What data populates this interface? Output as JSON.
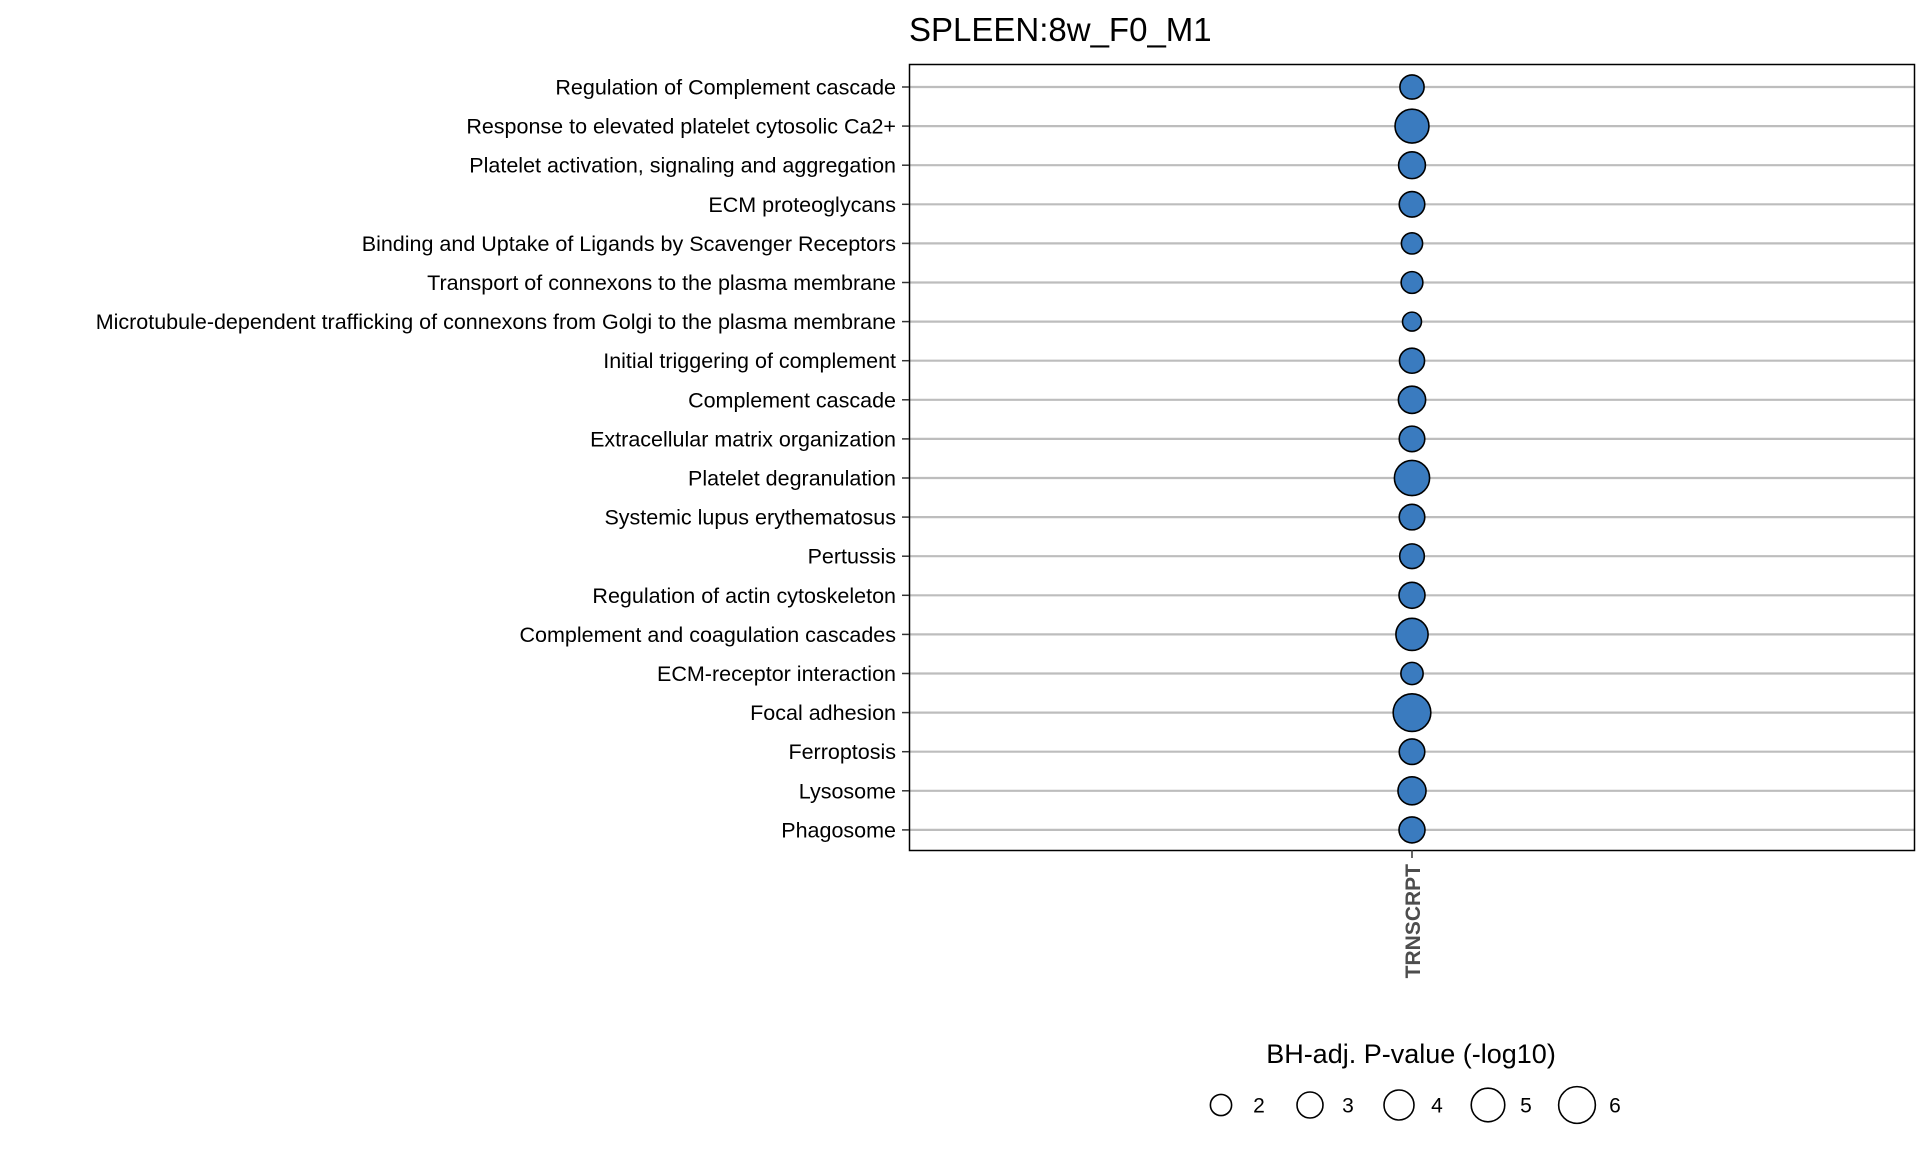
{
  "chart_data": {
    "type": "scatter",
    "title": "SPLEEN:8w_F0_M1",
    "x_categories": [
      "TRNSCRPT"
    ],
    "y_categories": [
      "Regulation of Complement cascade",
      "Response to elevated platelet cytosolic Ca2+",
      "Platelet activation, signaling and aggregation",
      "ECM proteoglycans",
      "Binding and Uptake of Ligands by Scavenger Receptors",
      "Transport of connexons to the plasma membrane",
      "Microtubule-dependent trafficking of connexons from Golgi to the plasma membrane",
      "Initial triggering of complement",
      "Complement cascade",
      "Extracellular matrix organization",
      "Platelet degranulation ",
      "Systemic lupus erythematosus",
      "Pertussis",
      "Regulation of actin cytoskeleton",
      "Complement and coagulation cascades",
      "ECM-receptor interaction",
      "Focal adhesion",
      "Ferroptosis",
      "Lysosome",
      "Phagosome"
    ],
    "series": [
      {
        "x": "TRNSCRPT",
        "values": [
          2.6,
          5.1,
          3.2,
          2.9,
          2.0,
          2.1,
          1.6,
          2.8,
          3.3,
          2.9,
          5.5,
          2.9,
          2.7,
          3.0,
          4.6,
          2.2,
          6.3,
          2.9,
          3.5,
          3.0
        ]
      }
    ],
    "marker_color": "#3a7bbf",
    "size_legend": {
      "title": "BH-adj. P-value (-log10)",
      "values": [
        2,
        3,
        4,
        5,
        6
      ],
      "labels": [
        "2",
        "3",
        "4",
        "5",
        "6"
      ]
    },
    "grid": "horizontal-major"
  }
}
